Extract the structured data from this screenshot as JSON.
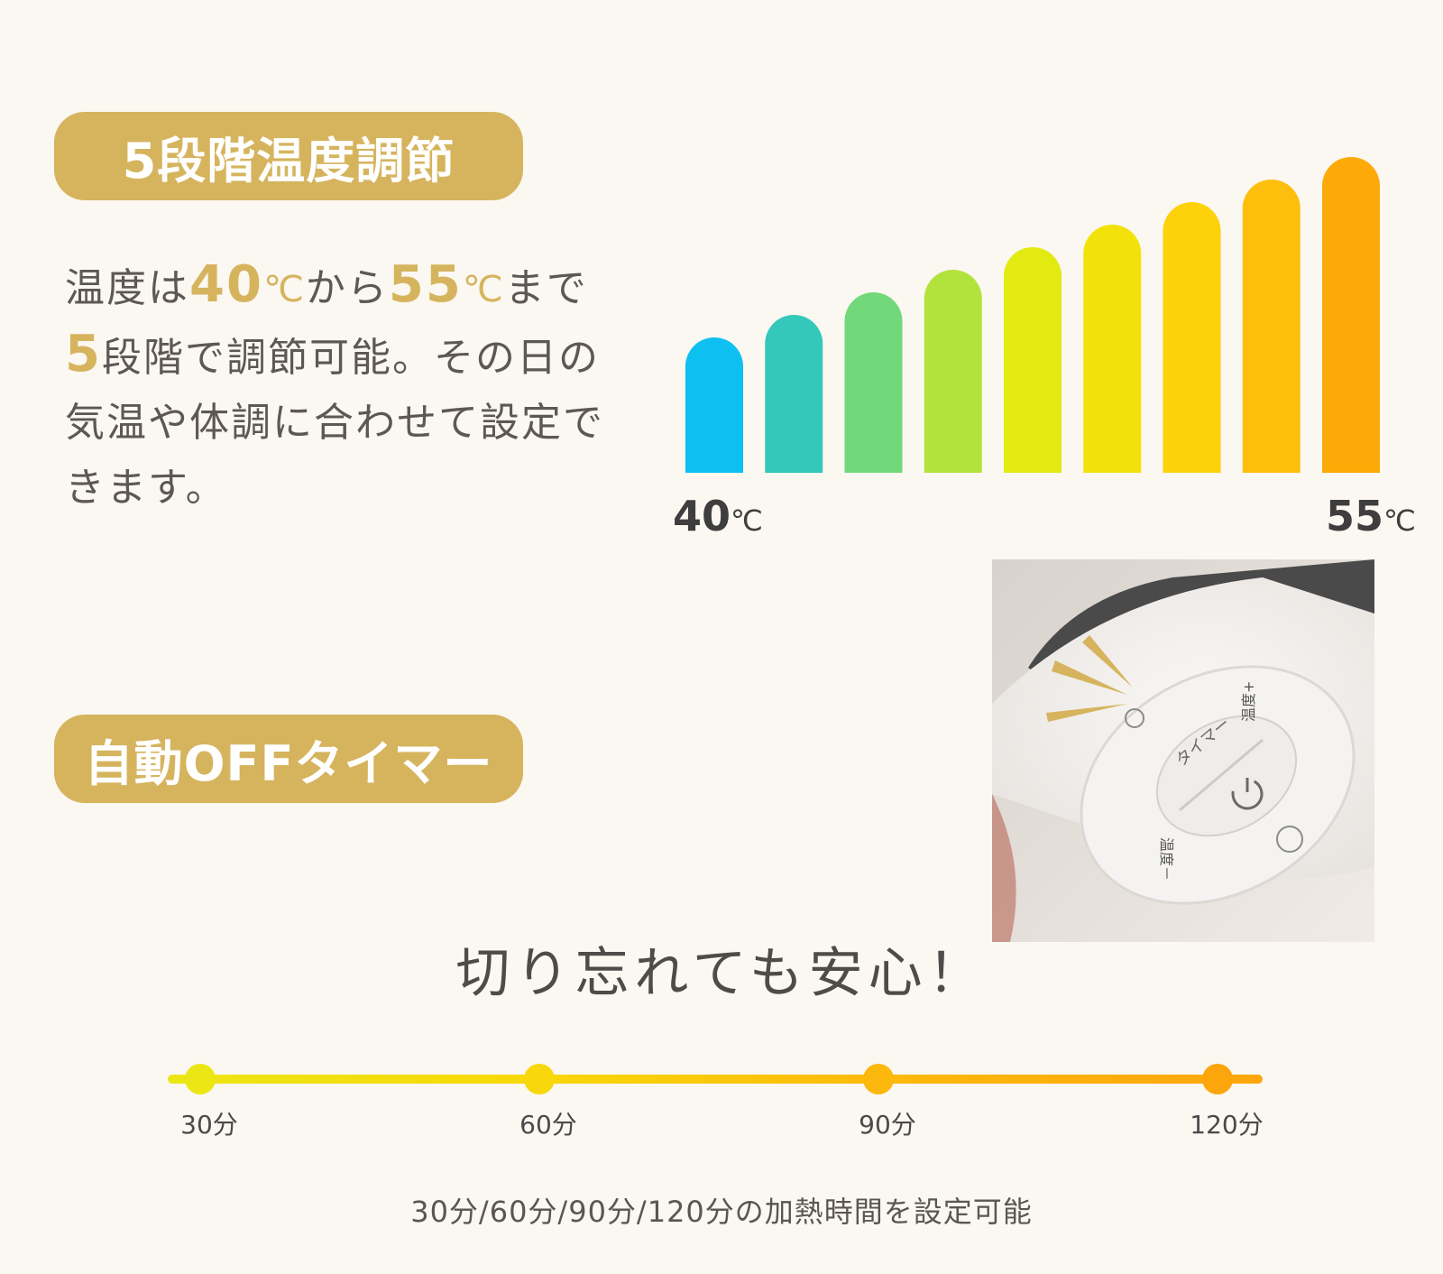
{
  "section1": {
    "title": "5段階温度調節",
    "desc": {
      "p1": "温度は",
      "v1": "40",
      "u1": "℃",
      "p2": "から",
      "v2": "55",
      "u2": "℃",
      "p3": "まで",
      "v3": "5",
      "p4": "段階で調節可能。その日の気温や体調に合わせて設定できます。"
    },
    "bars": {
      "count": 9,
      "colors": [
        "#0ec0f1",
        "#33c8b9",
        "#71d97a",
        "#b2e33c",
        "#e2ea12",
        "#f2e20a",
        "#fdd20a",
        "#fdbf0c",
        "#fdaa08"
      ],
      "min_label": "40",
      "max_label": "55",
      "unit": "℃"
    }
  },
  "section2": {
    "title": "自動OFFタイマー",
    "remote": {
      "timer_button": "タイマー",
      "temp_plus": "温度+",
      "temp_minus": "温度－"
    },
    "tagline": "切り忘れても安心！",
    "timeline": {
      "points": [
        "30分",
        "60分",
        "90分",
        "120分"
      ],
      "colors": [
        "#ece614",
        "#f8d80a",
        "#fcb80c",
        "#fca60c"
      ]
    },
    "footnote": "30分/60分/90分/120分の加熱時間を設定可能"
  }
}
